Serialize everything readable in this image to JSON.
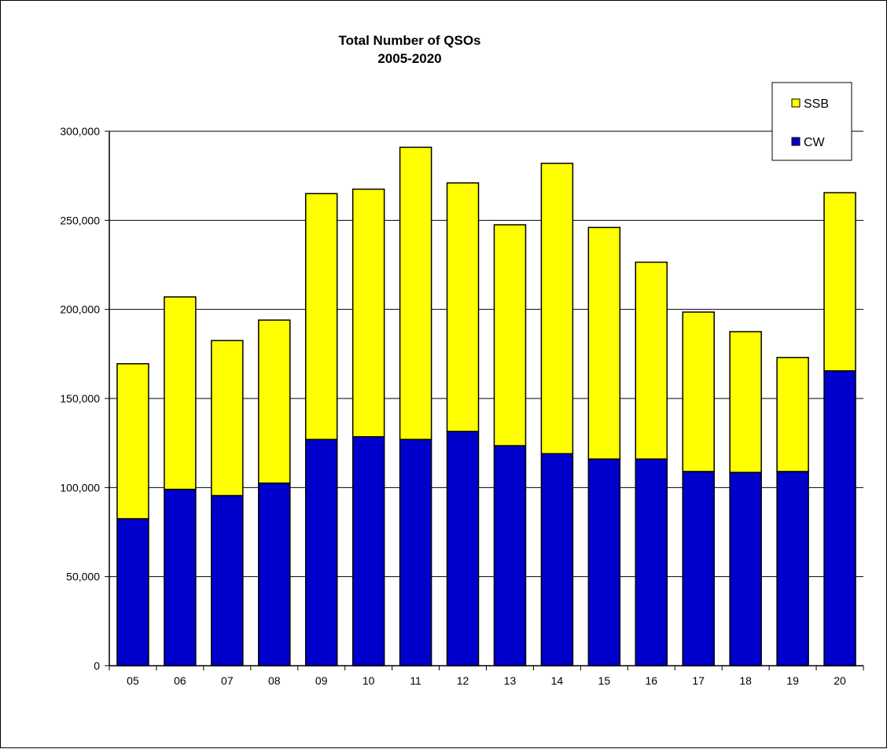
{
  "chart_data": {
    "type": "bar",
    "stacked": true,
    "title": "Total Number of QSOs",
    "subtitle": "2005-2020",
    "xlabel": "",
    "ylabel": "",
    "ylim": [
      0,
      300000
    ],
    "ytick_step": 50000,
    "ytick_labels": [
      "0",
      "50,000",
      "100,000",
      "150,000",
      "200,000",
      "250,000",
      "300,000"
    ],
    "categories": [
      "05",
      "06",
      "07",
      "08",
      "09",
      "10",
      "11",
      "12",
      "13",
      "14",
      "15",
      "16",
      "17",
      "18",
      "19",
      "20"
    ],
    "grid": true,
    "legend_position": "top-right",
    "series": [
      {
        "name": "CW",
        "color": "#0000CC",
        "values": [
          82500,
          99000,
          95500,
          102500,
          127000,
          128500,
          127000,
          131500,
          123500,
          119000,
          116000,
          116000,
          109000,
          108500,
          109000,
          165500
        ]
      },
      {
        "name": "SSB",
        "color": "#FFFF00",
        "values": [
          87000,
          108000,
          87000,
          91500,
          138000,
          139000,
          164000,
          139500,
          124000,
          163000,
          130000,
          110500,
          89500,
          79000,
          64000,
          100000
        ]
      }
    ],
    "legend_order": [
      "SSB",
      "CW"
    ]
  }
}
